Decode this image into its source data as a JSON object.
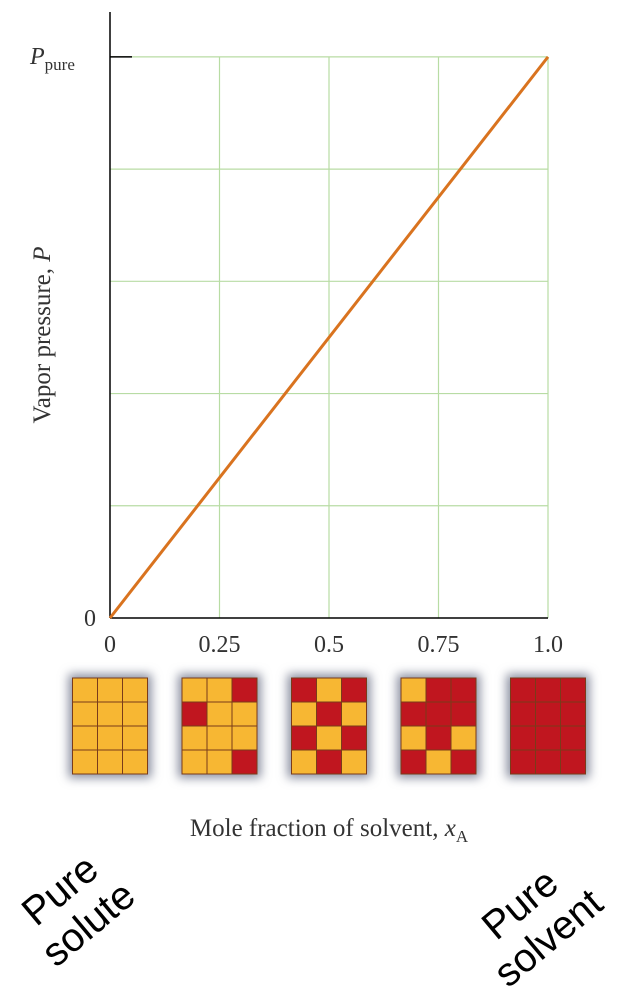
{
  "chart_data": {
    "type": "line",
    "y_label": {
      "text": "Vapor pressure, ",
      "var": "P"
    },
    "x_label": {
      "text": "Mole fraction of solvent, ",
      "var": "x",
      "sub": "A"
    },
    "x": [
      0,
      1
    ],
    "series": [
      {
        "color": "#d9731f",
        "values": [
          0,
          1
        ]
      }
    ],
    "xlim": [
      0,
      1
    ],
    "ylim": [
      0,
      1.08
    ],
    "xticks": [
      0,
      0.25,
      0.5,
      0.75,
      {
        "value": 1,
        "label": "1.0"
      }
    ],
    "yticks": [
      0,
      {
        "value": 0.2,
        "label": null
      },
      {
        "value": 0.4,
        "label": null
      },
      {
        "value": 0.6,
        "label": null
      },
      {
        "value": 0.8,
        "label": null
      },
      {
        "value": 1,
        "label": "P",
        "sub": "pure"
      }
    ],
    "grid": true,
    "grid_color": "#b8dca4",
    "annotations": [
      {
        "lines": [
          "Pure",
          "solute"
        ]
      },
      {
        "lines": [
          "Pure",
          "solvent"
        ]
      }
    ]
  }
}
